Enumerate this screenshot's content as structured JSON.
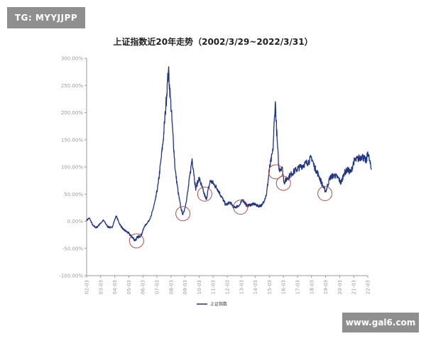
{
  "watermarks": {
    "top": "TG: MYYJJPP",
    "bottom": "www.gal6.com"
  },
  "colors": {
    "series": "#1f3483",
    "circle": "#a85050",
    "watermark_bg": "#8f8f8f"
  },
  "chart_data": {
    "type": "line",
    "title": "上证指数近20年走势（2002/3/29~2022/3/31）",
    "xlabel": "",
    "ylabel": "",
    "ylim": [
      -100,
      300
    ],
    "yticks": [
      300,
      250,
      200,
      150,
      100,
      50,
      0,
      -50,
      -100
    ],
    "ytick_labels": [
      "300.00%",
      "250.00%",
      "200.00%",
      "150.00%",
      "100.00%",
      "50.00%",
      "0.00%",
      "-50.00%",
      "-100.00%"
    ],
    "xlim": [
      2002,
      2022
    ],
    "xtick_labels": [
      "02-03",
      "03-03",
      "04-03",
      "05-03",
      "06-03",
      "07-03",
      "08-03",
      "09-03",
      "10-03",
      "11-03",
      "12-03",
      "13-03",
      "14-03",
      "15-03",
      "16-03",
      "17-03",
      "18-03",
      "19-03",
      "20-03",
      "21-03",
      "22-03"
    ],
    "legend": [
      "上证指数"
    ],
    "legend_position": "bottom",
    "grid": false,
    "series": [
      {
        "name": "上证指数",
        "x": [
          2002.0,
          2002.2,
          2002.45,
          2002.7,
          2002.9,
          2003.2,
          2003.5,
          2003.8,
          2004.1,
          2004.35,
          2004.6,
          2004.9,
          2005.2,
          2005.45,
          2005.6,
          2005.9,
          2006.1,
          2006.4,
          2006.6,
          2006.9,
          2007.1,
          2007.3,
          2007.45,
          2007.6,
          2007.75,
          2007.82,
          2007.95,
          2008.1,
          2008.3,
          2008.5,
          2008.7,
          2008.85,
          2009.0,
          2009.2,
          2009.5,
          2009.6,
          2009.75,
          2010.0,
          2010.3,
          2010.5,
          2010.8,
          2011.0,
          2011.3,
          2011.6,
          2011.9,
          2012.2,
          2012.5,
          2012.9,
          2013.1,
          2013.4,
          2013.6,
          2013.9,
          2014.2,
          2014.5,
          2014.8,
          2015.0,
          2015.25,
          2015.42,
          2015.55,
          2015.68,
          2015.9,
          2016.05,
          2016.3,
          2016.6,
          2016.9,
          2017.2,
          2017.5,
          2017.8,
          2018.0,
          2018.2,
          2018.5,
          2018.8,
          2019.0,
          2019.1,
          2019.3,
          2019.6,
          2019.9,
          2020.1,
          2020.3,
          2020.55,
          2020.8,
          2021.0,
          2021.3,
          2021.6,
          2021.9,
          2022.0,
          2022.1,
          2022.25
        ],
        "values": [
          2,
          6,
          -8,
          -12,
          -6,
          2,
          -10,
          -12,
          10,
          -5,
          -15,
          -20,
          -28,
          -35,
          -30,
          -25,
          -10,
          0,
          10,
          40,
          70,
          115,
          150,
          200,
          255,
          278,
          230,
          175,
          95,
          55,
          25,
          12,
          25,
          55,
          115,
          95,
          60,
          80,
          55,
          40,
          75,
          70,
          60,
          45,
          30,
          35,
          25,
          30,
          40,
          28,
          30,
          32,
          28,
          30,
          50,
          95,
          130,
          220,
          150,
          95,
          100,
          72,
          80,
          88,
          95,
          100,
          105,
          110,
          118,
          100,
          85,
          65,
          55,
          62,
          80,
          85,
          80,
          70,
          88,
          95,
          90,
          110,
          115,
          120,
          110,
          128,
          115,
          95
        ]
      }
    ],
    "annotations": [
      {
        "type": "circle",
        "x": 2005.55,
        "y": -36
      },
      {
        "type": "circle",
        "x": 2008.85,
        "y": 14
      },
      {
        "type": "circle",
        "x": 2010.4,
        "y": 50
      },
      {
        "type": "circle",
        "x": 2012.95,
        "y": 26
      },
      {
        "type": "circle",
        "x": 2015.45,
        "y": 91
      },
      {
        "type": "circle",
        "x": 2016.0,
        "y": 70
      },
      {
        "type": "circle",
        "x": 2018.95,
        "y": 51
      }
    ]
  }
}
